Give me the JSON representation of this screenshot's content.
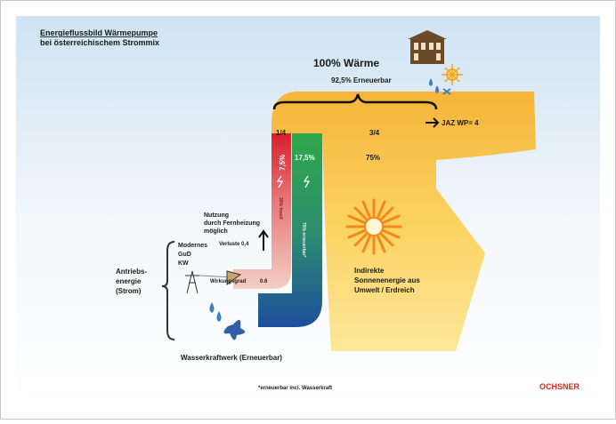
{
  "header": {
    "title": "Energieflussbild Wärmepumpe",
    "subtitle": "bei österreichischem Strommix"
  },
  "output": {
    "label": "100% Wärme",
    "renewable": "92,5% Erneuerbar",
    "jaz": "JAZ WP= 4",
    "share_drive": "1/4",
    "share_ambient": "3/4"
  },
  "flows": {
    "fossil": "7,5%",
    "fossil_note": "30% fossil",
    "renewable_power": "17,5%",
    "renewable_note": "70% erneuerbar*",
    "ambient": "75%"
  },
  "notes": {
    "district_heating": [
      "Nutzung",
      "durch Fernheizung",
      "möglich"
    ],
    "losses": "Verluste 0,4",
    "plant": [
      "Modernes",
      "GuD",
      "KW"
    ],
    "drive": [
      "Antriebs-",
      "energie",
      "(Strom)"
    ],
    "efficiency": "Wirkungsgrad",
    "efficiency_value": "0.6",
    "ambient_source": [
      "Indirekte",
      "Sonnenenergie aus",
      "Umwelt / Erdreich"
    ],
    "hydro": "Wasserkraftwerk (Erneuerbar)"
  },
  "footer": {
    "footnote": "*erneuerbar incl. Wasserkraft",
    "brand": "OCHSNER"
  }
}
